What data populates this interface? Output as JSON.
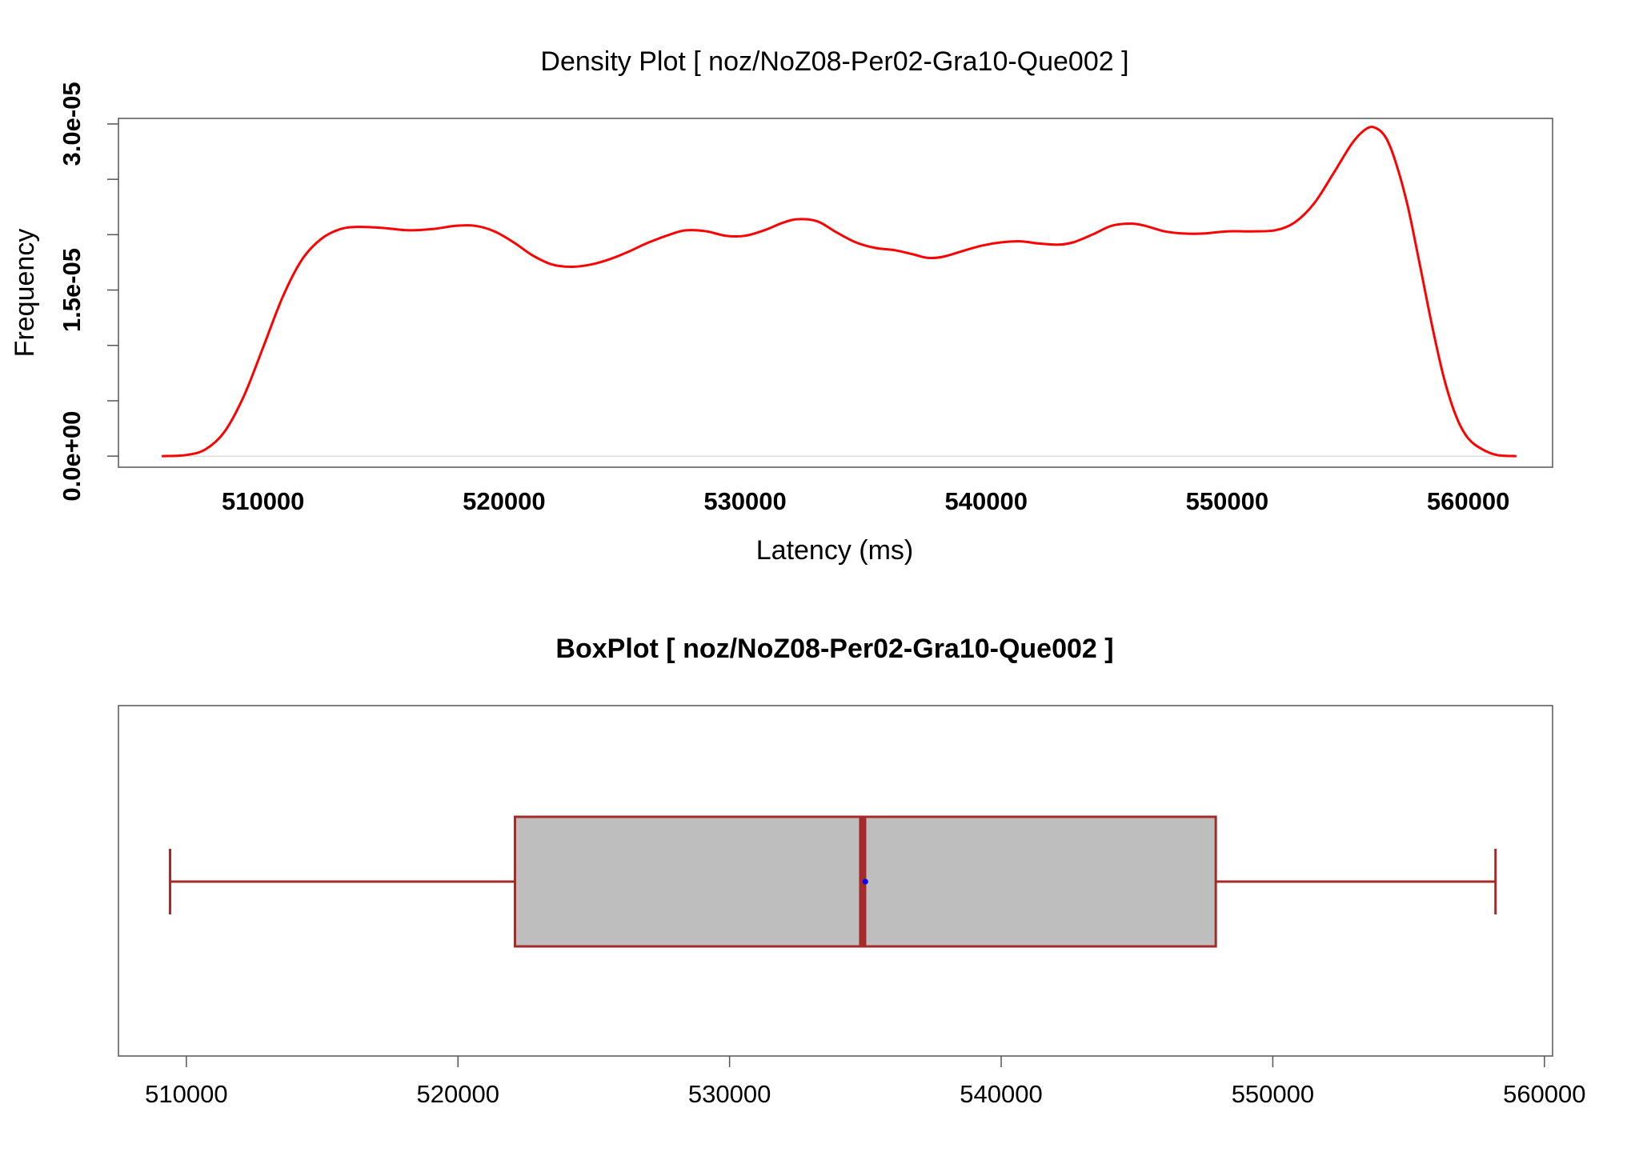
{
  "chart_data": [
    {
      "type": "line",
      "title": "Density Plot [ noz/NoZ08-Per02-Gra10-Que002 ]",
      "xlabel": "Latency (ms)",
      "ylabel": "Frequency",
      "xlim": [
        504000,
        563500
      ],
      "ylim": [
        -1e-06,
        3.05e-05
      ],
      "x_ticks": [
        510000,
        520000,
        530000,
        540000,
        550000,
        560000
      ],
      "x_tick_labels": [
        "510000",
        "520000",
        "530000",
        "540000",
        "550000",
        "560000"
      ],
      "y_ticks": [
        0,
        5e-06,
        1e-05,
        1.5e-05,
        2e-05,
        2.5e-05,
        3e-05
      ],
      "y_tick_labels": [
        "0.0e+00",
        "1.5e-05",
        "3.0e-05"
      ],
      "y_tick_label_values": [
        0,
        1.5e-05,
        3e-05
      ],
      "grid": false,
      "baseline": 0,
      "series": [
        {
          "color": "#ff0000",
          "x": [
            505800,
            506800,
            507600,
            508400,
            509200,
            510000,
            510800,
            511600,
            512400,
            513200,
            514000,
            515000,
            516000,
            517000,
            518000,
            518800,
            519600,
            520400,
            521200,
            522000,
            522800,
            523600,
            524400,
            525200,
            526000,
            527000,
            527600,
            528400,
            529200,
            530000,
            530800,
            531600,
            532200,
            533000,
            533800,
            534600,
            535400,
            536200,
            537000,
            537600,
            538200,
            539000,
            539800,
            540600,
            541400,
            542200,
            543000,
            543600,
            544400,
            545200,
            546000,
            546600,
            547400,
            548200,
            549000,
            550000,
            551000,
            552000,
            552800,
            553600,
            554400,
            555200,
            555800,
            556200,
            556600,
            557000,
            557500,
            558000,
            558500,
            559000,
            559500,
            560000,
            560600,
            561200,
            562000
          ],
          "values": [
            0.0,
            1e-07,
            6e-07,
            2.2e-06,
            5.4e-06,
            9.8e-06,
            1.43e-05,
            1.77e-05,
            1.96e-05,
            2.05e-05,
            2.07e-05,
            2.06e-05,
            2.04e-05,
            2.05e-05,
            2.08e-05,
            2.08e-05,
            2.03e-05,
            1.93e-05,
            1.81e-05,
            1.73e-05,
            1.71e-05,
            1.73e-05,
            1.78e-05,
            1.85e-05,
            1.93e-05,
            2.01e-05,
            2.04e-05,
            2.03e-05,
            1.99e-05,
            1.99e-05,
            2.04e-05,
            2.11e-05,
            2.14e-05,
            2.12e-05,
            2.02e-05,
            1.93e-05,
            1.88e-05,
            1.86e-05,
            1.82e-05,
            1.79e-05,
            1.8e-05,
            1.85e-05,
            1.9e-05,
            1.93e-05,
            1.94e-05,
            1.92e-05,
            1.91e-05,
            1.93e-05,
            2e-05,
            2.08e-05,
            2.1e-05,
            2.08e-05,
            2.03e-05,
            2.01e-05,
            2.01e-05,
            2.03e-05,
            2.03e-05,
            2.04e-05,
            2.11e-05,
            2.28e-05,
            2.55e-05,
            2.83e-05,
            2.96e-05,
            2.96e-05,
            2.87e-05,
            2.65e-05,
            2.25e-05,
            1.72e-05,
            1.18e-05,
            7e-06,
            3.6e-06,
            1.6e-06,
            6e-07,
            1e-07,
            0.0
          ]
        }
      ]
    },
    {
      "type": "box",
      "title": "BoxPlot [ noz/NoZ08-Per02-Gra10-Que002 ]",
      "orientation": "horizontal",
      "xlim": [
        507500,
        560300
      ],
      "x_ticks": [
        510000,
        520000,
        530000,
        540000,
        550000,
        560000
      ],
      "x_tick_labels": [
        "510000",
        "520000",
        "530000",
        "540000",
        "550000",
        "560000"
      ],
      "whisker_low": 509400,
      "q1": 522100,
      "median": 534900,
      "mean": 535000,
      "q3": 547900,
      "whisker_high": 558200,
      "box_fill": "#bebebe",
      "line_color": "#a52a2a",
      "mean_color": "#0000ff"
    }
  ]
}
